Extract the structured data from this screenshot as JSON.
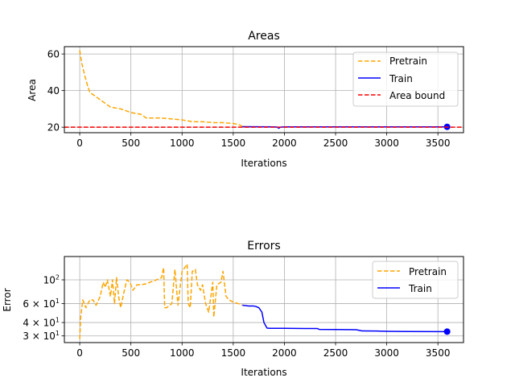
{
  "chart_data": [
    {
      "type": "line",
      "title": "Areas",
      "xlabel": "Iterations",
      "ylabel": "Area",
      "xlim": [
        -150,
        3750
      ],
      "ylim": [
        17,
        64
      ],
      "grid": true,
      "legend_position": "upper right",
      "x_ticks": [
        0,
        500,
        1000,
        1500,
        2000,
        2500,
        3000,
        3500
      ],
      "y_ticks": [
        20,
        40,
        60
      ],
      "legend": [
        "Pretrain",
        "Train",
        "Area bound"
      ],
      "series": [
        {
          "name": "Pretrain",
          "color": "#ffa500",
          "style": "dashed",
          "x": [
            0,
            20,
            50,
            80,
            100,
            150,
            200,
            250,
            300,
            400,
            500,
            600,
            650,
            700,
            800,
            900,
            1000,
            1050,
            1100,
            1200,
            1300,
            1400,
            1500,
            1550,
            1590
          ],
          "y": [
            62,
            55,
            48,
            42,
            39,
            37,
            35,
            33,
            31,
            30,
            28,
            27,
            25,
            25,
            25,
            24.5,
            24,
            23.5,
            23,
            23,
            22.5,
            22.5,
            22,
            21.5,
            20.5
          ]
        },
        {
          "name": "Train",
          "color": "#0000ff",
          "style": "solid",
          "x": [
            1590,
            1900,
            1930,
            1945,
            1960,
            2000,
            2500,
            3000,
            3500,
            3590
          ],
          "y": [
            20.3,
            20.2,
            20.0,
            19.4,
            20.0,
            20.2,
            20.2,
            20.2,
            20.2,
            20.2
          ],
          "end_marker": [
            3590,
            20.2
          ]
        },
        {
          "name": "Area bound",
          "color": "#ff0000",
          "style": "dashed",
          "hline": 20
        }
      ]
    },
    {
      "type": "line",
      "title": "Errors",
      "xlabel": "Iterations",
      "ylabel": "Error",
      "xlim": [
        -150,
        3750
      ],
      "ylim": [
        26,
        165
      ],
      "yscale": "log",
      "grid": true,
      "legend_position": "upper right",
      "x_ticks": [
        0,
        500,
        1000,
        1500,
        2000,
        2500,
        3000,
        3500
      ],
      "y_ticks": [
        {
          "value": 30,
          "base": "3 × 10",
          "exp": "1"
        },
        {
          "value": 40,
          "base": "4 × 10",
          "exp": "1"
        },
        {
          "value": 60,
          "base": "6 × 10",
          "exp": "1"
        },
        {
          "value": 100,
          "base": "10",
          "exp": "2"
        }
      ],
      "legend": [
        "Pretrain",
        "Train"
      ],
      "series": [
        {
          "name": "Pretrain",
          "color": "#ffa500",
          "style": "dashed",
          "x": [
            0,
            10,
            30,
            60,
            80,
            100,
            130,
            160,
            200,
            230,
            250,
            270,
            300,
            320,
            340,
            360,
            380,
            400,
            430,
            460,
            490,
            520,
            560,
            600,
            650,
            700,
            750,
            800,
            820,
            830,
            850,
            900,
            930,
            960,
            1000,
            1050,
            1060,
            1080,
            1100,
            1130,
            1150,
            1180,
            1200,
            1230,
            1260,
            1300,
            1310,
            1340,
            1380,
            1400,
            1430,
            1460,
            1500,
            1550,
            1590
          ],
          "y": [
            28,
            45,
            65,
            55,
            60,
            65,
            65,
            58,
            70,
            95,
            85,
            100,
            70,
            100,
            60,
            105,
            70,
            55,
            75,
            100,
            95,
            80,
            90,
            90,
            92,
            96,
            100,
            105,
            130,
            55,
            55,
            60,
            125,
            58,
            120,
            140,
            60,
            55,
            120,
            125,
            90,
            80,
            90,
            60,
            50,
            95,
            45,
            90,
            95,
            120,
            70,
            65,
            62,
            60,
            58
          ]
        },
        {
          "name": "Train",
          "color": "#0000ff",
          "style": "solid",
          "x": [
            1590,
            1650,
            1700,
            1720,
            1750,
            1780,
            1800,
            1830,
            1860,
            2000,
            2200,
            2320,
            2340,
            2500,
            2700,
            2760,
            2780,
            2900,
            3000,
            3200,
            3500,
            3590
          ],
          "y": [
            58,
            57,
            57,
            56.5,
            55,
            50,
            40,
            35.5,
            35.3,
            35.3,
            35.2,
            35.2,
            34.5,
            34.4,
            34.3,
            33.4,
            33.4,
            33.3,
            33.1,
            33,
            32.9,
            32.9
          ],
          "end_marker": [
            3590,
            32.9
          ]
        }
      ]
    }
  ]
}
